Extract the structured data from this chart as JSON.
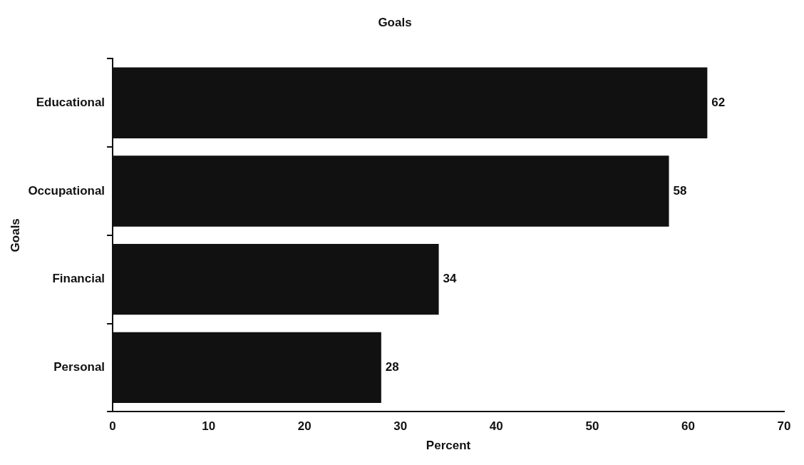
{
  "chart_data": {
    "type": "bar",
    "orientation": "horizontal",
    "title": "Goals",
    "ylabel": "Goals",
    "xlabel": "Percent",
    "categories": [
      "Educational",
      "Occupational",
      "Financial",
      "Personal"
    ],
    "values": [
      62,
      58,
      34,
      28
    ],
    "color": "#111111",
    "xlim": [
      0,
      70
    ],
    "xticks": [
      0,
      10,
      20,
      30,
      40,
      50,
      60,
      70
    ],
    "grid": false,
    "data_labels": true
  }
}
